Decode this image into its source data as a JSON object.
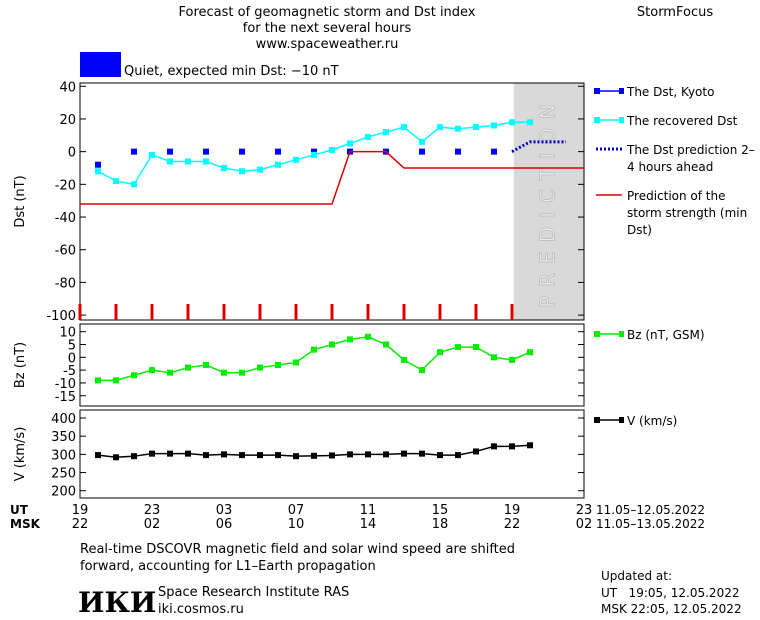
{
  "header": {
    "title_lines": [
      "Forecast of geomagnetic storm and Dst index",
      "for the next several hours",
      "www.spaceweather.ru"
    ],
    "brand": "StormFocus"
  },
  "status": {
    "text": "Quiet, expected min Dst: −10 nT",
    "color": "#0000ff"
  },
  "time_axis": {
    "xlim": [
      19,
      47
    ],
    "rows": [
      {
        "label": "UT",
        "ticks": [
          19,
          23,
          {
            "value": 27,
            "label": "03"
          },
          {
            "value": 31,
            "label": "07"
          },
          {
            "value": 35,
            "label": "11"
          },
          {
            "value": 39,
            "label": "15"
          },
          {
            "value": 43,
            "label": "19"
          },
          {
            "value": 47,
            "label": "23"
          }
        ],
        "range": "11.05–12.05.2022"
      },
      {
        "label": "MSK",
        "ticks": [
          {
            "value": 19,
            "label": "22"
          },
          {
            "value": 23,
            "label": "02"
          },
          {
            "value": 27,
            "label": "06"
          },
          {
            "value": 31,
            "label": "10"
          },
          {
            "value": 35,
            "label": "14"
          },
          {
            "value": 39,
            "label": "18"
          },
          {
            "value": 43,
            "label": "22"
          },
          {
            "value": 47,
            "label": "02"
          }
        ],
        "range": "11.05–13.05.2022"
      }
    ]
  },
  "chart_data": [
    {
      "type": "line",
      "ylabel": "Dst (nT)",
      "ylim": [
        -103,
        42
      ],
      "yticks": [
        40,
        20,
        0,
        -20,
        -40,
        -60,
        -80,
        -100
      ],
      "prediction": {
        "from": 43.1,
        "label": "PREDICTION",
        "color": "#d9d9d9"
      },
      "hour_marks_color": "#dd0000",
      "series": [
        {
          "name": "The Dst, Kyoto",
          "color": "#0000ff",
          "marker": "square",
          "line": "none",
          "x": [
            20,
            22,
            24,
            26,
            28,
            30,
            32,
            34,
            36,
            38,
            40,
            42
          ],
          "values": [
            -8,
            0,
            0,
            0,
            0,
            0,
            0,
            0,
            0,
            0,
            0,
            0
          ]
        },
        {
          "name": "The recovered Dst",
          "color": "#00ffff",
          "marker": "square",
          "line": "solid",
          "x": [
            20,
            21,
            22,
            23,
            24,
            25,
            26,
            27,
            28,
            29,
            30,
            31,
            32,
            33,
            34,
            35,
            36,
            37,
            38,
            39,
            40,
            41,
            42,
            43,
            44
          ],
          "values": [
            -12,
            -18,
            -20,
            -2,
            -6,
            -6,
            -6,
            -10,
            -12,
            -11,
            -8,
            -5,
            -2,
            1,
            5,
            9,
            12,
            15,
            6,
            15,
            14,
            15,
            16,
            18,
            18
          ]
        },
        {
          "name": "The Dst prediction 2–4 hours ahead",
          "color": "#0000cc",
          "marker": "none",
          "line": "dotted",
          "x": [
            43,
            44,
            45,
            46
          ],
          "values": [
            0,
            6,
            6,
            6
          ]
        },
        {
          "name": "Prediction of the storm strength (min Dst)",
          "color": "#dd0000",
          "marker": "none",
          "line": "solid",
          "x": [
            19,
            33,
            34,
            36,
            37,
            47
          ],
          "values": [
            -32,
            -32,
            0,
            0,
            -10,
            -10
          ]
        }
      ]
    },
    {
      "type": "line",
      "ylabel": "Bz (nT)",
      "ylim": [
        -19,
        13
      ],
      "yticks": [
        10,
        5,
        0,
        -5,
        -10,
        -15
      ],
      "series": [
        {
          "name": "Bz (nT, GSM)",
          "color": "#00ee00",
          "marker": "square",
          "line": "solid",
          "x": [
            20,
            21,
            22,
            23,
            24,
            25,
            26,
            27,
            28,
            29,
            30,
            31,
            32,
            33,
            34,
            35,
            36,
            37,
            38,
            39,
            40,
            41,
            42,
            43,
            44
          ],
          "values": [
            -9,
            -9,
            -7,
            -5,
            -6,
            -4,
            -3,
            -6,
            -6,
            -4,
            -3,
            -2,
            3,
            5,
            7,
            8,
            5,
            -1,
            -5,
            2,
            4,
            4,
            0,
            -1,
            2
          ]
        }
      ]
    },
    {
      "type": "line",
      "ylabel": "V (km/s)",
      "ylim": [
        180,
        422
      ],
      "yticks": [
        400,
        350,
        300,
        250,
        200
      ],
      "series": [
        {
          "name": "V (km/s)",
          "color": "#000000",
          "marker": "square",
          "line": "solid",
          "x": [
            20,
            21,
            22,
            23,
            24,
            25,
            26,
            27,
            28,
            29,
            30,
            31,
            32,
            33,
            34,
            35,
            36,
            37,
            38,
            39,
            40,
            41,
            42,
            43,
            44
          ],
          "values": [
            298,
            292,
            295,
            302,
            302,
            302,
            298,
            300,
            298,
            298,
            298,
            295,
            296,
            297,
            300,
            300,
            300,
            302,
            302,
            298,
            298,
            308,
            322,
            322,
            325
          ]
        }
      ]
    }
  ],
  "footer": {
    "note_lines": [
      "Real-time DSCOVR magnetic field and solar wind speed are shifted",
      "forward, accounting for L1–Earth propagation"
    ],
    "logo": "ИКИ",
    "institute": "Space Research Institute RAS",
    "site": "iki.cosmos.ru",
    "updated_label": "Updated at:",
    "updated_lines": [
      "UT   19:05, 12.05.2022",
      "MSK 22:05, 12.05.2022"
    ]
  }
}
